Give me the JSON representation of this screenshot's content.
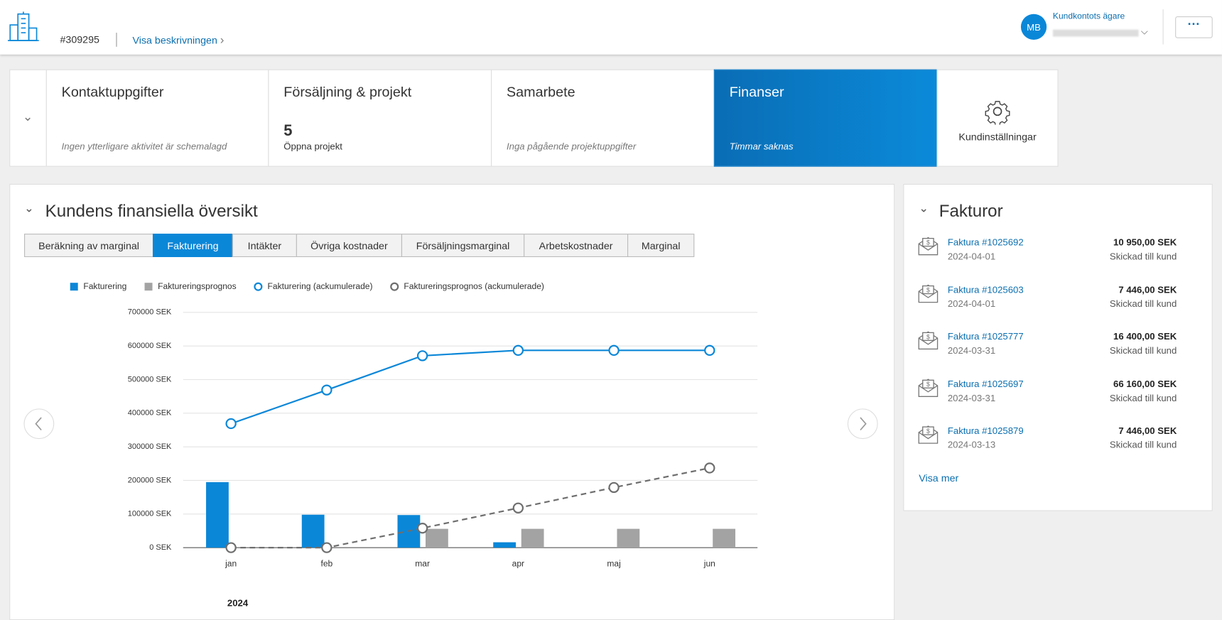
{
  "header": {
    "id": "#309295",
    "link": "Visa beskrivningen",
    "avatar": "MB",
    "account_role": "Kundkontots ägare"
  },
  "nav_cards": [
    {
      "title": "Kontaktuppgifter",
      "subtitle": "Ingen ytterligare aktivitet är schemalagd"
    },
    {
      "title": "Försäljning & projekt",
      "count": 5,
      "subtitle": "Öppna projekt"
    },
    {
      "title": "Samarbete",
      "subtitle": "Inga pågående projektuppgifter"
    },
    {
      "title": "Finanser",
      "subtitle": "Timmar saknas"
    }
  ],
  "settings_card": "Kundinställningar",
  "overview": {
    "title": "Kundens finansiella översikt",
    "tabs": [
      "Beräkning av marginal",
      "Fakturering",
      "Intäkter",
      "Övriga kostnader",
      "Försäljningsmarginal",
      "Arbetskostnader",
      "Marginal"
    ],
    "active_tab": 1
  },
  "chart_data": {
    "type": "combo",
    "categories": [
      "jan",
      "feb",
      "mar",
      "apr",
      "maj",
      "jun"
    ],
    "x_label": "2024",
    "series": [
      {
        "name": "Fakturering",
        "type": "bar",
        "color": "#0b87d8",
        "values": [
          195000,
          98000,
          97000,
          16000,
          0,
          0
        ]
      },
      {
        "name": "Faktureringsprognos",
        "type": "bar",
        "color": "#a3a3a3",
        "values": [
          0,
          0,
          56000,
          56000,
          56000,
          56000
        ]
      },
      {
        "name": "Fakturering (ackumulerade)",
        "type": "line",
        "color": "#0b87d8",
        "values": [
          369000,
          469000,
          571000,
          587000,
          587000,
          587000
        ]
      },
      {
        "name": "Faktureringsprognos (ackumulerade)",
        "type": "line",
        "dashed": true,
        "color": "#6e6e6e",
        "values": [
          0,
          0,
          58000,
          118000,
          179000,
          237000
        ]
      }
    ],
    "ylim": [
      0,
      700000
    ],
    "yticks": [
      {
        "value": 0,
        "label": "0 SEK"
      },
      {
        "value": 100000,
        "label": "100000 SEK"
      },
      {
        "value": 200000,
        "label": "200000 SEK"
      },
      {
        "value": 300000,
        "label": "300000 SEK"
      },
      {
        "value": 400000,
        "label": "400000 SEK"
      },
      {
        "value": 500000,
        "label": "500000 SEK"
      },
      {
        "value": 600000,
        "label": "600000 SEK"
      },
      {
        "value": 700000,
        "label": "700000 SEK"
      }
    ],
    "grid": true
  },
  "invoices": {
    "title": "Fakturor",
    "items": [
      {
        "title": "Faktura #1025692",
        "date": "2024-04-01",
        "amount": "10 950,00 SEK",
        "status": "Skickad till kund"
      },
      {
        "title": "Faktura #1025603",
        "date": "2024-04-01",
        "amount": "7 446,00 SEK",
        "status": "Skickad till kund"
      },
      {
        "title": "Faktura #1025777",
        "date": "2024-03-31",
        "amount": "16 400,00 SEK",
        "status": "Skickad till kund"
      },
      {
        "title": "Faktura #1025697",
        "date": "2024-03-31",
        "amount": "66 160,00 SEK",
        "status": "Skickad till kund"
      },
      {
        "title": "Faktura #1025879",
        "date": "2024-03-13",
        "amount": "7 446,00 SEK",
        "status": "Skickad till kund"
      }
    ],
    "more": "Visa mer"
  }
}
